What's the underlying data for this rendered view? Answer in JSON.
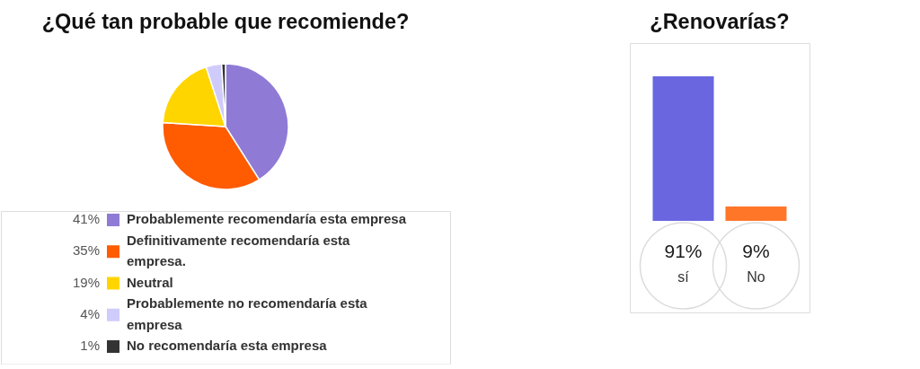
{
  "chart_data": [
    {
      "type": "pie",
      "title": "¿Qué tan probable que recomiende?",
      "categories": [
        "Probablemente recomendaría esta empresa",
        "Definitivamente recomendaría esta empresa.",
        "Neutral",
        "Probablemente no recomendaría esta empresa",
        "No recomendaría esta empresa"
      ],
      "values": [
        41,
        35,
        19,
        4,
        1
      ],
      "colors": [
        "#8f7bd5",
        "#ff5b00",
        "#ffd500",
        "#cfcbfb",
        "#333333"
      ],
      "value_labels": [
        "41%",
        "35%",
        "19%",
        "4%",
        "1%"
      ],
      "legend": "bottom"
    },
    {
      "type": "bar",
      "title": "¿Renovarías?",
      "categories": [
        "sí",
        "No"
      ],
      "values": [
        91,
        9
      ],
      "colors": [
        "#6966e0",
        "#ff7629"
      ],
      "value_labels": [
        "91%",
        "9%"
      ],
      "tick_labels": "x"
    }
  ]
}
